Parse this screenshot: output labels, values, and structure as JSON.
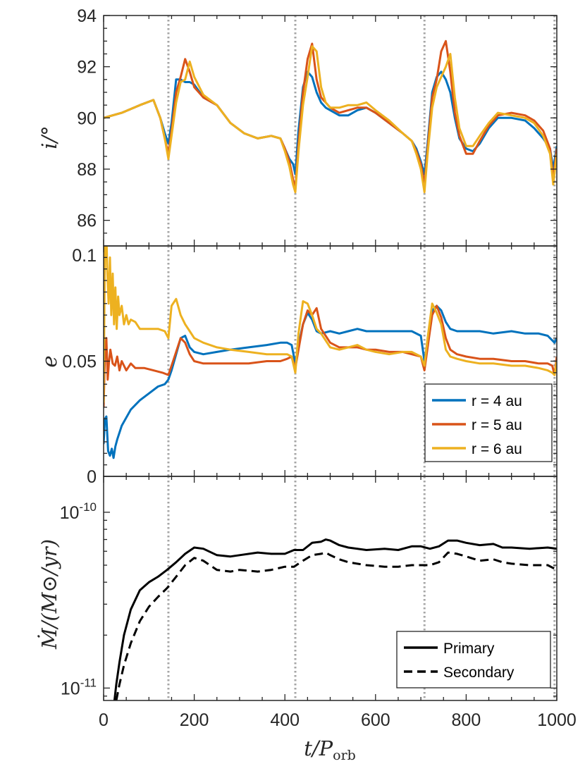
{
  "chart_data": [
    {
      "type": "line",
      "ylabel": "i/°",
      "ylim": [
        85,
        94
      ],
      "yticks": [
        86,
        88,
        90,
        92,
        94
      ],
      "xlim": [
        0,
        1000
      ],
      "grid": false,
      "series": [
        {
          "name": "r = 4 au",
          "color": "#0072BD",
          "x": [
            0,
            40,
            80,
            110,
            125,
            135,
            143,
            150,
            160,
            170,
            180,
            190,
            200,
            220,
            250,
            280,
            310,
            340,
            370,
            390,
            400,
            410,
            418,
            423,
            430,
            440,
            450,
            460,
            470,
            480,
            490,
            500,
            520,
            540,
            560,
            580,
            600,
            630,
            660,
            680,
            690,
            700,
            708,
            715,
            725,
            735,
            745,
            755,
            765,
            775,
            785,
            800,
            815,
            830,
            850,
            870,
            900,
            930,
            950,
            970,
            985,
            992,
            1000
          ],
          "y": [
            90.0,
            90.2,
            90.5,
            90.7,
            90.0,
            89.4,
            89.0,
            89.8,
            91.5,
            91.5,
            91.4,
            91.4,
            91.3,
            90.8,
            90.5,
            89.8,
            89.4,
            89.2,
            89.3,
            89.2,
            88.8,
            88.4,
            88.2,
            87.8,
            89.5,
            91.2,
            91.8,
            91.6,
            91.0,
            90.6,
            90.4,
            90.3,
            90.1,
            90.1,
            90.3,
            90.4,
            90.2,
            89.8,
            89.4,
            89.1,
            88.8,
            88.3,
            87.8,
            89.0,
            91.0,
            91.6,
            91.8,
            91.5,
            91.0,
            90.0,
            89.2,
            88.8,
            88.7,
            89.0,
            89.6,
            90.0,
            90.0,
            89.9,
            89.6,
            89.2,
            88.8,
            88.0,
            88.9
          ]
        },
        {
          "name": "r = 5 au",
          "color": "#D95319",
          "x": [
            0,
            40,
            80,
            110,
            125,
            135,
            143,
            150,
            160,
            170,
            180,
            190,
            200,
            220,
            250,
            280,
            310,
            340,
            370,
            390,
            400,
            410,
            418,
            423,
            430,
            440,
            450,
            460,
            470,
            480,
            490,
            500,
            520,
            540,
            560,
            580,
            600,
            630,
            660,
            680,
            690,
            700,
            708,
            715,
            725,
            735,
            745,
            755,
            765,
            775,
            785,
            800,
            815,
            830,
            850,
            870,
            900,
            930,
            950,
            970,
            985,
            992,
            1000
          ],
          "y": [
            90.0,
            90.2,
            90.5,
            90.7,
            90.0,
            89.2,
            88.6,
            89.5,
            91.0,
            91.6,
            92.3,
            91.8,
            91.2,
            90.8,
            90.5,
            89.8,
            89.4,
            89.2,
            89.3,
            89.2,
            88.8,
            88.3,
            87.6,
            87.2,
            89.0,
            91.0,
            92.3,
            92.9,
            91.5,
            90.8,
            90.6,
            90.4,
            90.2,
            90.3,
            90.4,
            90.4,
            90.2,
            89.8,
            89.4,
            89.1,
            88.7,
            88.2,
            87.4,
            88.8,
            90.8,
            91.5,
            92.6,
            93.0,
            91.8,
            90.2,
            89.3,
            88.6,
            88.6,
            89.1,
            89.7,
            90.1,
            90.2,
            90.1,
            89.9,
            89.5,
            88.8,
            87.6,
            88.8
          ]
        },
        {
          "name": "r = 6 au",
          "color": "#EDB120",
          "x": [
            0,
            40,
            80,
            110,
            125,
            135,
            143,
            150,
            160,
            170,
            180,
            190,
            200,
            220,
            250,
            280,
            310,
            340,
            370,
            390,
            400,
            410,
            418,
            423,
            430,
            440,
            450,
            460,
            470,
            480,
            490,
            500,
            520,
            540,
            560,
            580,
            600,
            630,
            660,
            680,
            690,
            700,
            708,
            715,
            725,
            735,
            745,
            755,
            765,
            775,
            785,
            800,
            815,
            830,
            850,
            870,
            900,
            930,
            950,
            970,
            985,
            992,
            1000
          ],
          "y": [
            90.0,
            90.2,
            90.5,
            90.7,
            90.0,
            89.2,
            88.4,
            89.3,
            90.6,
            91.4,
            91.5,
            92.2,
            91.6,
            90.9,
            90.5,
            89.8,
            89.4,
            89.2,
            89.3,
            89.2,
            88.7,
            88.1,
            87.4,
            87.1,
            88.7,
            90.5,
            91.6,
            92.8,
            92.6,
            91.2,
            90.6,
            90.4,
            90.4,
            90.5,
            90.5,
            90.6,
            90.3,
            89.9,
            89.4,
            89.1,
            88.6,
            88.0,
            87.1,
            88.6,
            90.4,
            91.2,
            91.6,
            92.0,
            92.5,
            90.8,
            89.6,
            88.9,
            88.9,
            89.3,
            89.8,
            90.2,
            90.1,
            90.0,
            89.8,
            89.3,
            88.6,
            87.4,
            88.6
          ]
        }
      ]
    },
    {
      "type": "line",
      "ylabel": "e",
      "ylim": [
        0,
        0.1
      ],
      "yticks": [
        0,
        0.05,
        0.1
      ],
      "ytick_labels": [
        "0",
        "0.05",
        "0.1"
      ],
      "xlim": [
        0,
        1000
      ],
      "grid": false,
      "legend_position": "bottom-right",
      "series": [
        {
          "name": "r = 4 au",
          "color": "#0072BD",
          "x": [
            0,
            3,
            6,
            10,
            14,
            18,
            22,
            26,
            30,
            40,
            60,
            80,
            100,
            120,
            135,
            143,
            150,
            160,
            170,
            180,
            190,
            200,
            220,
            250,
            280,
            320,
            360,
            390,
            405,
            415,
            423,
            430,
            440,
            450,
            460,
            470,
            480,
            500,
            520,
            540,
            560,
            580,
            600,
            630,
            660,
            680,
            700,
            708,
            715,
            725,
            735,
            745,
            755,
            765,
            780,
            800,
            830,
            860,
            900,
            930,
            960,
            980,
            990,
            995,
            1000
          ],
          "y": [
            0.014,
            0.025,
            0.026,
            0.011,
            0.009,
            0.012,
            0.008,
            0.013,
            0.016,
            0.022,
            0.029,
            0.033,
            0.036,
            0.039,
            0.04,
            0.042,
            0.046,
            0.053,
            0.06,
            0.061,
            0.056,
            0.054,
            0.053,
            0.054,
            0.055,
            0.056,
            0.057,
            0.058,
            0.058,
            0.057,
            0.049,
            0.057,
            0.066,
            0.071,
            0.068,
            0.063,
            0.062,
            0.063,
            0.062,
            0.063,
            0.064,
            0.063,
            0.063,
            0.063,
            0.063,
            0.063,
            0.061,
            0.05,
            0.058,
            0.072,
            0.074,
            0.072,
            0.067,
            0.064,
            0.063,
            0.063,
            0.063,
            0.062,
            0.063,
            0.062,
            0.062,
            0.061,
            0.059,
            0.058,
            0.06
          ]
        },
        {
          "name": "r = 5 au",
          "color": "#D95319",
          "x": [
            0,
            3,
            6,
            9,
            12,
            15,
            20,
            25,
            30,
            35,
            40,
            50,
            60,
            70,
            90,
            110,
            130,
            143,
            150,
            160,
            170,
            180,
            190,
            200,
            220,
            250,
            280,
            320,
            360,
            390,
            405,
            415,
            423,
            430,
            440,
            450,
            460,
            470,
            480,
            500,
            520,
            540,
            560,
            580,
            600,
            630,
            660,
            680,
            700,
            708,
            715,
            725,
            735,
            745,
            755,
            765,
            780,
            800,
            830,
            860,
            900,
            930,
            960,
            980,
            990,
            995,
            1000
          ],
          "y": [
            0.03,
            0.053,
            0.06,
            0.042,
            0.05,
            0.055,
            0.049,
            0.048,
            0.052,
            0.046,
            0.05,
            0.046,
            0.049,
            0.047,
            0.047,
            0.046,
            0.045,
            0.044,
            0.048,
            0.054,
            0.06,
            0.058,
            0.053,
            0.05,
            0.049,
            0.049,
            0.049,
            0.049,
            0.05,
            0.05,
            0.051,
            0.052,
            0.047,
            0.055,
            0.066,
            0.072,
            0.07,
            0.073,
            0.064,
            0.058,
            0.056,
            0.056,
            0.056,
            0.055,
            0.055,
            0.054,
            0.054,
            0.053,
            0.052,
            0.046,
            0.056,
            0.07,
            0.074,
            0.069,
            0.06,
            0.055,
            0.053,
            0.052,
            0.051,
            0.051,
            0.05,
            0.05,
            0.049,
            0.049,
            0.048,
            0.044,
            0.052
          ]
        },
        {
          "name": "r = 6 au",
          "color": "#EDB120",
          "x": [
            0,
            3,
            6,
            8,
            11,
            14,
            17,
            20,
            23,
            26,
            29,
            32,
            35,
            40,
            45,
            50,
            55,
            60,
            70,
            80,
            100,
            120,
            135,
            143,
            150,
            160,
            170,
            180,
            190,
            200,
            220,
            250,
            280,
            320,
            360,
            390,
            405,
            415,
            423,
            430,
            440,
            450,
            460,
            470,
            480,
            500,
            520,
            540,
            560,
            580,
            600,
            630,
            660,
            680,
            700,
            708,
            715,
            725,
            735,
            745,
            755,
            765,
            780,
            800,
            830,
            860,
            900,
            930,
            960,
            980,
            990,
            995,
            1000
          ],
          "y": [
            0.032,
            0.101,
            0.106,
            0.09,
            0.075,
            0.095,
            0.07,
            0.088,
            0.066,
            0.082,
            0.064,
            0.078,
            0.07,
            0.074,
            0.066,
            0.07,
            0.066,
            0.068,
            0.067,
            0.064,
            0.064,
            0.064,
            0.063,
            0.06,
            0.074,
            0.077,
            0.07,
            0.066,
            0.063,
            0.06,
            0.058,
            0.056,
            0.055,
            0.054,
            0.053,
            0.053,
            0.053,
            0.052,
            0.045,
            0.062,
            0.076,
            0.075,
            0.07,
            0.064,
            0.062,
            0.056,
            0.055,
            0.056,
            0.057,
            0.055,
            0.054,
            0.053,
            0.054,
            0.054,
            0.052,
            0.048,
            0.06,
            0.075,
            0.071,
            0.066,
            0.055,
            0.052,
            0.051,
            0.05,
            0.049,
            0.049,
            0.048,
            0.048,
            0.047,
            0.046,
            0.045,
            0.044,
            0.05
          ]
        }
      ],
      "legend": [
        "r = 4 au",
        "r = 5 au",
        "r = 6 au"
      ]
    },
    {
      "type": "line",
      "yscale": "log",
      "ylabel": "Ṁ/(M⊙/yr)",
      "ylim": [
        8.5e-12,
        1.6e-10
      ],
      "ytick_labels": [
        {
          "base": "10",
          "exp": "-10",
          "value": 1e-10
        },
        {
          "base": "10",
          "exp": "-11",
          "value": 1e-11
        }
      ],
      "xlabel": "t/P",
      "xlabel_sub": "orb",
      "xlim": [
        0,
        1000
      ],
      "xticks": [
        0,
        200,
        400,
        600,
        800,
        1000
      ],
      "grid": false,
      "legend_position": "bottom-right",
      "series": [
        {
          "name": "Primary",
          "color": "#000000",
          "style": "solid",
          "x": [
            24,
            28,
            35,
            45,
            60,
            80,
            100,
            120,
            140,
            160,
            180,
            200,
            220,
            250,
            280,
            300,
            340,
            370,
            400,
            420,
            440,
            460,
            480,
            490,
            500,
            520,
            540,
            580,
            620,
            650,
            680,
            700,
            720,
            740,
            760,
            780,
            800,
            830,
            860,
            880,
            900,
            940,
            980,
            1000
          ],
          "y": [
            8.5e-12,
            1.05e-11,
            1.4e-11,
            2e-11,
            2.8e-11,
            3.6e-11,
            4e-11,
            4.3e-11,
            4.7e-11,
            5.2e-11,
            5.8e-11,
            6.3e-11,
            6.2e-11,
            5.7e-11,
            5.6e-11,
            5.7e-11,
            5.9e-11,
            5.8e-11,
            5.8e-11,
            6.1e-11,
            6.1e-11,
            6.7e-11,
            6.8e-11,
            7e-11,
            6.9e-11,
            6.5e-11,
            6.3e-11,
            6.1e-11,
            6.2e-11,
            6.1e-11,
            6.4e-11,
            6.4e-11,
            6.2e-11,
            6.4e-11,
            6.9e-11,
            6.9e-11,
            6.7e-11,
            6.5e-11,
            6.6e-11,
            6.3e-11,
            6.3e-11,
            6.2e-11,
            6.3e-11,
            6.2e-11
          ]
        },
        {
          "name": "Secondary",
          "color": "#000000",
          "style": "dashed",
          "x": [
            28,
            35,
            45,
            60,
            80,
            100,
            120,
            140,
            160,
            180,
            200,
            220,
            250,
            280,
            300,
            340,
            370,
            400,
            420,
            440,
            460,
            480,
            490,
            500,
            520,
            540,
            580,
            620,
            650,
            680,
            700,
            720,
            740,
            760,
            780,
            800,
            830,
            860,
            880,
            900,
            940,
            980,
            1000
          ],
          "y": [
            8.5e-12,
            1.05e-11,
            1.35e-11,
            1.8e-11,
            2.4e-11,
            2.9e-11,
            3.3e-11,
            3.7e-11,
            4.3e-11,
            5e-11,
            5.5e-11,
            5.3e-11,
            4.7e-11,
            4.6e-11,
            4.7e-11,
            4.6e-11,
            4.7e-11,
            4.9e-11,
            4.9e-11,
            5.3e-11,
            5.7e-11,
            5.8e-11,
            5.9e-11,
            5.7e-11,
            5.4e-11,
            5.2e-11,
            5e-11,
            4.9e-11,
            4.9e-11,
            5e-11,
            5e-11,
            5e-11,
            5.2e-11,
            5.9e-11,
            5.8e-11,
            5.6e-11,
            5.3e-11,
            5.4e-11,
            5.2e-11,
            5.1e-11,
            5e-11,
            5e-11,
            4.7e-11
          ]
        }
      ],
      "legend": [
        "Primary",
        "Secondary"
      ]
    }
  ],
  "vertical_markers": {
    "x": [
      143,
      423,
      708,
      995
    ],
    "color": "#A6A6A6",
    "style": "dotted"
  }
}
